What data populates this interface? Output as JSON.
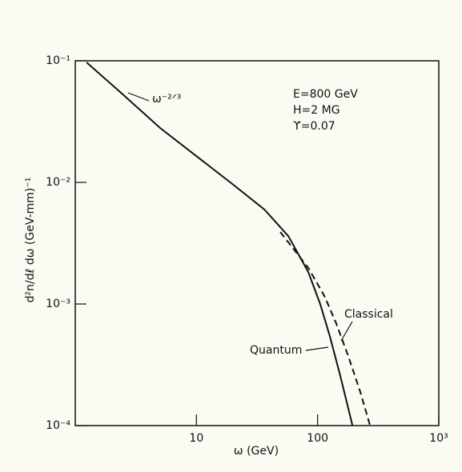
{
  "chart_data": {
    "type": "line",
    "x_label": "ω (GeV)",
    "y_label": "d²n/dℓ dω  (GeV-mm)⁻¹",
    "log_x": true,
    "log_y": true,
    "xlim": [
      1,
      1000
    ],
    "ylim": [
      0.0001,
      0.1
    ],
    "xticks": [
      10,
      100,
      {
        "value": 1000,
        "label": "10³"
      }
    ],
    "yticks": [
      {
        "value": 0.1,
        "label": "10⁻¹"
      },
      {
        "value": 0.01,
        "label": "10⁻²"
      },
      {
        "value": 0.001,
        "label": "10⁻³"
      },
      {
        "value": 0.0001,
        "label": "10⁻⁴"
      }
    ],
    "series": [
      {
        "name": "Quantum",
        "color": "#111111",
        "dashed": false,
        "x": [
          1.24,
          2.35,
          5.02,
          9.95,
          19.8,
          36.3,
          57.3,
          83.8,
          105,
          126,
          154,
          194
        ],
        "values": [
          0.097,
          0.0553,
          0.028,
          0.0165,
          0.0097,
          0.006,
          0.00362,
          0.00183,
          0.001,
          0.000546,
          0.000256,
          0.0001
        ]
      },
      {
        "name": "Classical",
        "color": "#111111",
        "dashed": true,
        "x": [
          49.2,
          83.8,
          114,
          143,
          179,
          225,
          271
        ],
        "values": [
          0.00391,
          0.00198,
          0.00116,
          0.000686,
          0.000373,
          0.000189,
          0.0001
        ]
      }
    ],
    "annotations": [
      "ω⁻²ᐟ³",
      "E=800 GeV",
      "H=2 MG",
      "ϒ=0.07"
    ]
  }
}
